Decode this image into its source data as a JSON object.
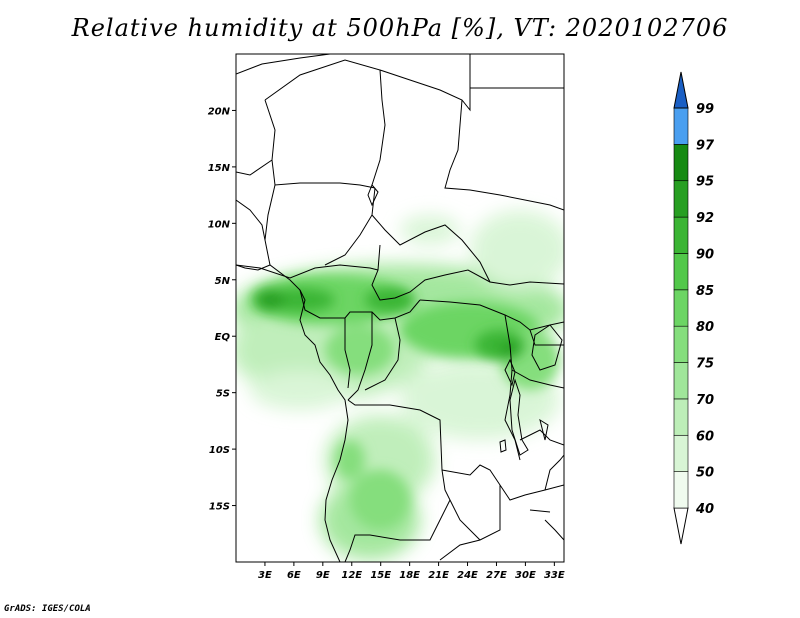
{
  "title": "Relative humidity at 500hPa [%], VT: 2020102706",
  "credit": "GrADS: IGES/COLA",
  "map": {
    "lat_ticks": [
      {
        "value": 20,
        "label": "20N"
      },
      {
        "value": 15,
        "label": "15N"
      },
      {
        "value": 10,
        "label": "10N"
      },
      {
        "value": 5,
        "label": "5N"
      },
      {
        "value": 0,
        "label": "EQ"
      },
      {
        "value": -5,
        "label": "5S"
      },
      {
        "value": -10,
        "label": "10S"
      },
      {
        "value": -15,
        "label": "15S"
      }
    ],
    "lon_ticks": [
      {
        "value": 3,
        "label": "3E"
      },
      {
        "value": 6,
        "label": "6E"
      },
      {
        "value": 9,
        "label": "9E"
      },
      {
        "value": 12,
        "label": "12E"
      },
      {
        "value": 15,
        "label": "15E"
      },
      {
        "value": 18,
        "label": "18E"
      },
      {
        "value": 21,
        "label": "21E"
      },
      {
        "value": 24,
        "label": "24E"
      },
      {
        "value": 27,
        "label": "27E"
      },
      {
        "value": 30,
        "label": "30E"
      },
      {
        "value": 33,
        "label": "33E"
      }
    ],
    "lon_range": [
      0,
      34
    ],
    "lat_range": [
      -20,
      25
    ],
    "field": "Relative humidity at 500hPa",
    "units": "%"
  },
  "colorbar": {
    "levels": [
      {
        "value": "40",
        "color": "#f0fbef"
      },
      {
        "value": "50",
        "color": "#d8f5d5"
      },
      {
        "value": "60",
        "color": "#bdeeb8"
      },
      {
        "value": "70",
        "color": "#a0e69a"
      },
      {
        "value": "75",
        "color": "#85de7d"
      },
      {
        "value": "80",
        "color": "#6cd564"
      },
      {
        "value": "85",
        "color": "#52c84a"
      },
      {
        "value": "90",
        "color": "#3bb534"
      },
      {
        "value": "92",
        "color": "#279f22"
      },
      {
        "value": "95",
        "color": "#168a12"
      },
      {
        "value": "97",
        "color": "#4a9ff0"
      },
      {
        "value": "99",
        "color": "#2b7fe0"
      }
    ],
    "low_color": "#ffffff",
    "top_color": "#1a5fc4"
  }
}
